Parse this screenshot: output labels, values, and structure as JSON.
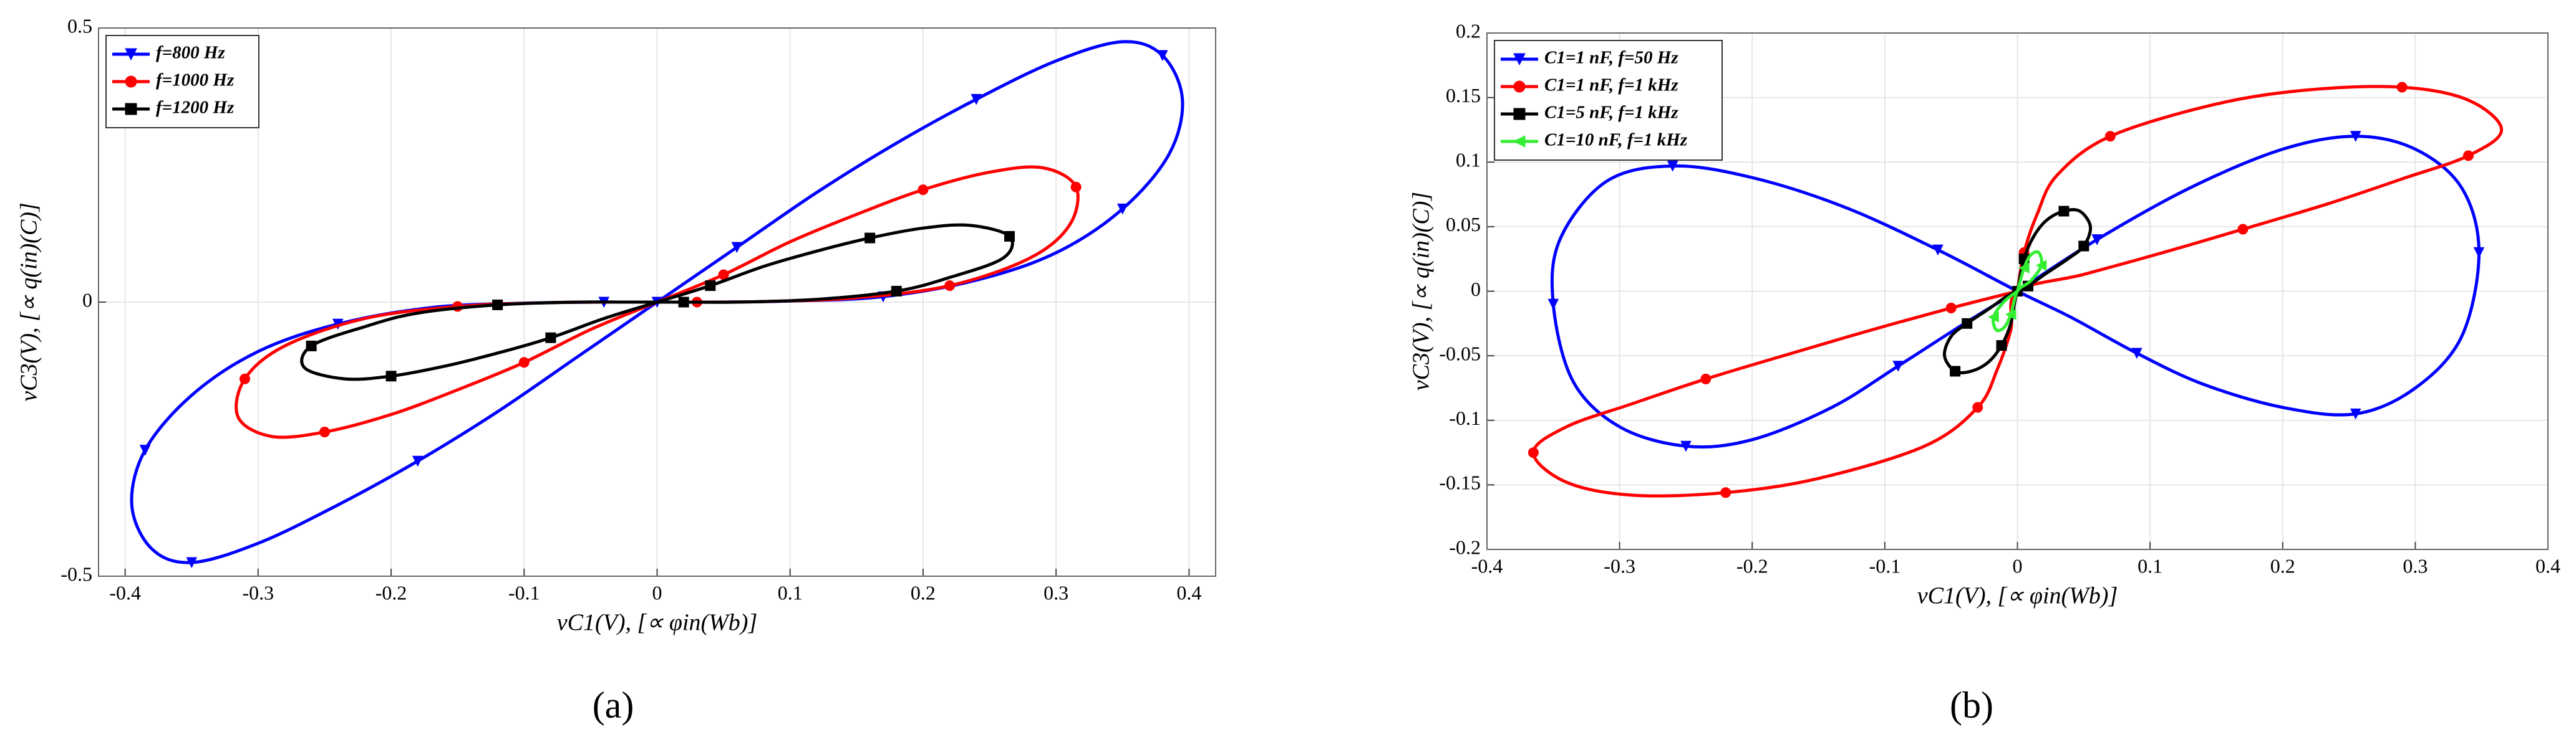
{
  "chart_data": [
    {
      "type": "line",
      "caption": "(a)",
      "xlabel": "vC1(V), [∝ φin(Wb)]",
      "ylabel": "vC3(V), [∝ q(in)(C)]",
      "xlim": [
        -0.42,
        0.42
      ],
      "ylim": [
        -0.5,
        0.5
      ],
      "xticks": [
        -0.4,
        -0.3,
        -0.2,
        -0.1,
        0,
        0.1,
        0.2,
        0.3,
        0.4
      ],
      "yticks": [
        -0.5,
        0,
        0.5
      ],
      "grid": true,
      "legend": "upper left",
      "series": [
        {
          "name": "f=800 Hz",
          "color": "#0000ff",
          "marker": "triangle-down",
          "x": [
            0,
            0.06,
            0.12,
            0.18,
            0.24,
            0.3,
            0.35,
            0.38,
            0.395,
            0.385,
            0.35,
            0.3,
            0.24,
            0.17,
            0.1,
            0.04,
            -0.04,
            -0.1,
            -0.17,
            -0.24,
            -0.3,
            -0.35,
            -0.385,
            -0.395,
            -0.38,
            -0.35,
            -0.3,
            -0.24,
            -0.18,
            -0.12,
            -0.06,
            0
          ],
          "values": [
            0,
            0.1,
            0.2,
            0.29,
            0.37,
            0.44,
            0.475,
            0.45,
            0.37,
            0.27,
            0.17,
            0.09,
            0.04,
            0.01,
            0.002,
            0,
            0,
            -0.002,
            -0.01,
            -0.04,
            -0.09,
            -0.17,
            -0.27,
            -0.37,
            -0.45,
            -0.475,
            -0.44,
            -0.37,
            -0.29,
            -0.2,
            -0.1,
            0
          ]
        },
        {
          "name": "f=1000 Hz",
          "color": "#ff0000",
          "marker": "circle",
          "x": [
            0,
            0.05,
            0.1,
            0.15,
            0.2,
            0.25,
            0.29,
            0.315,
            0.31,
            0.28,
            0.22,
            0.15,
            0.08,
            0.03,
            -0.03,
            -0.08,
            -0.15,
            -0.22,
            -0.28,
            -0.31,
            -0.315,
            -0.29,
            -0.25,
            -0.2,
            -0.15,
            -0.1,
            -0.05,
            0
          ],
          "values": [
            0,
            0.05,
            0.11,
            0.16,
            0.205,
            0.237,
            0.245,
            0.21,
            0.14,
            0.08,
            0.03,
            0.008,
            0.001,
            0,
            0,
            -0.001,
            -0.008,
            -0.03,
            -0.08,
            -0.14,
            -0.21,
            -0.245,
            -0.237,
            -0.205,
            -0.16,
            -0.11,
            -0.05,
            0
          ]
        },
        {
          "name": "f=1200 Hz",
          "color": "#000000",
          "marker": "square",
          "x": [
            0,
            0.04,
            0.08,
            0.12,
            0.16,
            0.2,
            0.235,
            0.265,
            0.26,
            0.22,
            0.18,
            0.12,
            0.06,
            0.02,
            -0.02,
            -0.06,
            -0.12,
            -0.18,
            -0.22,
            -0.26,
            -0.265,
            -0.235,
            -0.2,
            -0.16,
            -0.12,
            -0.08,
            -0.04,
            0
          ],
          "values": [
            0,
            0.03,
            0.065,
            0.093,
            0.117,
            0.135,
            0.14,
            0.12,
            0.08,
            0.045,
            0.02,
            0.005,
            0,
            0,
            0,
            0,
            -0.005,
            -0.02,
            -0.045,
            -0.08,
            -0.12,
            -0.14,
            -0.135,
            -0.117,
            -0.093,
            -0.065,
            -0.03,
            0
          ]
        }
      ]
    },
    {
      "type": "line",
      "caption": "(b)",
      "xlabel": "vC1(V), [∝ φin(Wb)]",
      "ylabel": "vC3(V), [∝ q(in)(C)]",
      "xlim": [
        -0.4,
        0.4
      ],
      "ylim": [
        -0.2,
        0.2
      ],
      "xticks": [
        -0.4,
        -0.3,
        -0.2,
        -0.1,
        0,
        0.1,
        0.2,
        0.3,
        0.4
      ],
      "yticks": [
        -0.2,
        -0.15,
        -0.1,
        -0.05,
        0,
        0.05,
        0.1,
        0.15,
        0.2
      ],
      "grid": true,
      "legend": "upper left",
      "series": [
        {
          "name": "C1=1 nF, f=50 Hz",
          "color": "#0000ff",
          "marker": "triangle-down",
          "x": [
            0,
            0.06,
            0.13,
            0.2,
            0.255,
            0.3,
            0.335,
            0.348,
            0.335,
            0.3,
            0.255,
            0.2,
            0.14,
            0.09,
            0.04,
            0,
            -0.06,
            -0.13,
            -0.2,
            -0.26,
            -0.31,
            -0.345,
            -0.35,
            -0.335,
            -0.3,
            -0.25,
            -0.2,
            -0.14,
            -0.09,
            -0.04,
            0
          ],
          "values": [
            0,
            0.04,
            0.08,
            0.11,
            0.12,
            0.11,
            0.08,
            0.03,
            -0.035,
            -0.075,
            -0.095,
            -0.09,
            -0.072,
            -0.048,
            -0.02,
            0,
            0.032,
            0.065,
            0.088,
            0.097,
            0.085,
            0.04,
            -0.01,
            -0.07,
            -0.105,
            -0.12,
            -0.115,
            -0.09,
            -0.058,
            -0.025,
            0
          ]
        },
        {
          "name": "C1=1 nF, f=1 kHz",
          "color": "#ff0000",
          "marker": "circle",
          "x": [
            0,
            0.005,
            0.015,
            0.03,
            0.07,
            0.15,
            0.22,
            0.29,
            0.34,
            0.365,
            0.34,
            0.29,
            0.235,
            0.17,
            0.11,
            0.05,
            0,
            -0.005,
            -0.015,
            -0.03,
            -0.07,
            -0.15,
            -0.22,
            -0.29,
            -0.34,
            -0.365,
            -0.34,
            -0.29,
            -0.235,
            -0.17,
            -0.11,
            -0.05,
            0
          ],
          "values": [
            0,
            0.03,
            0.06,
            0.09,
            0.12,
            0.145,
            0.156,
            0.158,
            0.148,
            0.125,
            0.105,
            0.087,
            0.068,
            0.048,
            0.03,
            0.013,
            0,
            -0.03,
            -0.06,
            -0.09,
            -0.12,
            -0.145,
            -0.156,
            -0.158,
            -0.148,
            -0.125,
            -0.105,
            -0.087,
            -0.068,
            -0.048,
            -0.03,
            -0.013,
            0
          ]
        },
        {
          "name": "C1=5 nF, f=1 kHz",
          "color": "#000000",
          "marker": "square",
          "x": [
            0,
            0.005,
            0.012,
            0.022,
            0.035,
            0.047,
            0.055,
            0.05,
            0.038,
            0.022,
            0.008,
            0,
            -0.005,
            -0.012,
            -0.022,
            -0.035,
            -0.047,
            -0.055,
            -0.05,
            -0.038,
            -0.022,
            -0.008,
            0
          ],
          "values": [
            0,
            0.025,
            0.042,
            0.055,
            0.062,
            0.062,
            0.05,
            0.035,
            0.025,
            0.014,
            0.004,
            0,
            -0.025,
            -0.042,
            -0.055,
            -0.062,
            -0.062,
            -0.05,
            -0.035,
            -0.025,
            -0.014,
            -0.004,
            0
          ]
        },
        {
          "name": "C1=10 nF, f=1 kHz",
          "color": "#33ee33",
          "marker": "triangle-left",
          "x": [
            0,
            0.005,
            0.01,
            0.016,
            0.018,
            0.01,
            0,
            -0.005,
            -0.01,
            -0.016,
            -0.018,
            -0.01,
            0
          ],
          "values": [
            0,
            0.018,
            0.028,
            0.03,
            0.02,
            0.008,
            0,
            -0.018,
            -0.028,
            -0.03,
            -0.02,
            -0.008,
            0
          ]
        }
      ]
    }
  ]
}
